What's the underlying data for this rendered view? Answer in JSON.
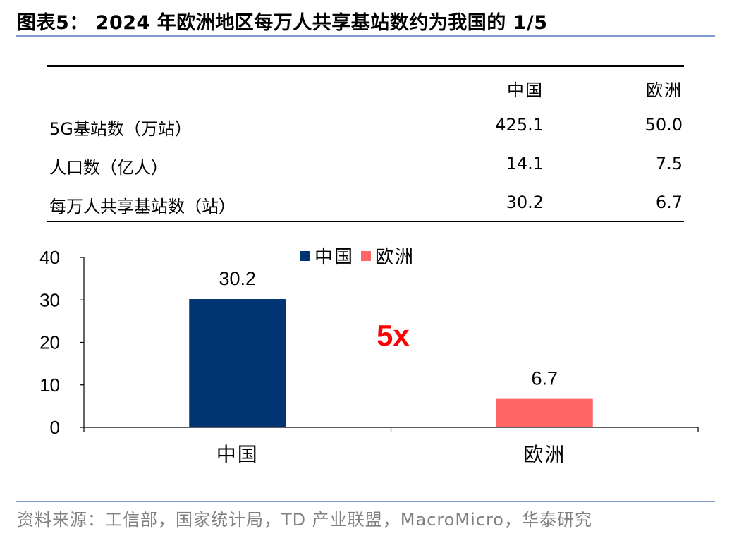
{
  "title": "图表5： 2024 年欧洲地区每万人共享基站数约为我国的 1/5",
  "table": {
    "headers": [
      "",
      "中国",
      "欧洲"
    ],
    "rows": [
      {
        "label": "5G基站数（万站）",
        "china": "425.1",
        "europe": "50.0"
      },
      {
        "label": "人口数（亿人）",
        "china": "14.1",
        "europe": "7.5"
      },
      {
        "label": "每万人共享基站数（站）",
        "china": "30.2",
        "europe": "6.7"
      }
    ]
  },
  "chart_data": {
    "type": "bar",
    "categories": [
      "中国",
      "欧洲"
    ],
    "values": [
      30.2,
      6.7
    ],
    "data_labels": [
      "30.2",
      "6.7"
    ],
    "colors": [
      "#003473",
      "#ff6666"
    ],
    "ylim": [
      0,
      40
    ],
    "yticks": [
      0,
      10,
      20,
      30,
      40
    ],
    "legend": {
      "entries": [
        "中国",
        "欧洲"
      ],
      "position": "top"
    },
    "annotation": "5x",
    "grid": false
  },
  "source": "资料来源：工信部，国家统计局，TD 产业联盟，MacroMicro，华泰研究"
}
